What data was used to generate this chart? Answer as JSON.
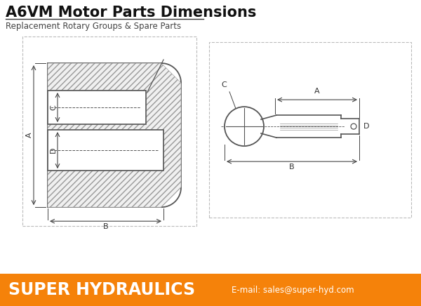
{
  "title": "A6VM Motor Parts Dimensions",
  "subtitle": "Replacement Rotary Groups & Spare Parts",
  "title_fontsize": 15,
  "subtitle_fontsize": 8.5,
  "footer_text": "SUPER HYDRAULICS",
  "footer_email": "E-mail: sales@super-hyd.com",
  "footer_bg": "#F5820A",
  "footer_text_color": "#FFFFFF",
  "bg_color": "#FFFFFF",
  "line_color": "#555555",
  "dim_color": "#444444",
  "label_color": "#333333",
  "box_edge_color": "#aaaaaa",
  "hatch_color": "#888888"
}
